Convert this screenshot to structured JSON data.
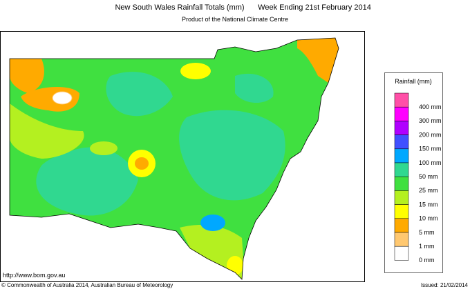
{
  "header": {
    "title": "New South Wales Rainfall Totals (mm)",
    "period": "Week Ending 21st February 2014",
    "subtitle": "Product of the National Climate Centre"
  },
  "legend": {
    "title": "Rainfall (mm)",
    "items": [
      {
        "label": "400 mm",
        "color": "#ff4fa7"
      },
      {
        "label": "300 mm",
        "color": "#ff00ff"
      },
      {
        "label": "200 mm",
        "color": "#b000ff"
      },
      {
        "label": "150 mm",
        "color": "#4050ff"
      },
      {
        "label": "100 mm",
        "color": "#00a8ff"
      },
      {
        "label": "50 mm",
        "color": "#30d890"
      },
      {
        "label": "25 mm",
        "color": "#40e040"
      },
      {
        "label": "15 mm",
        "color": "#b4f020"
      },
      {
        "label": "10 mm",
        "color": "#ffff00"
      },
      {
        "label": "5 mm",
        "color": "#ffaa00"
      },
      {
        "label": "1 mm",
        "color": "#ffc870"
      },
      {
        "label": "0 mm",
        "color": "#ffffff"
      }
    ]
  },
  "footer": {
    "url": "http://www.bom.gov.au",
    "copyright": "© Commonwealth of Australia 2014, Australian Bureau of Meteorology",
    "issued": "Issued: 21/02/2014"
  }
}
